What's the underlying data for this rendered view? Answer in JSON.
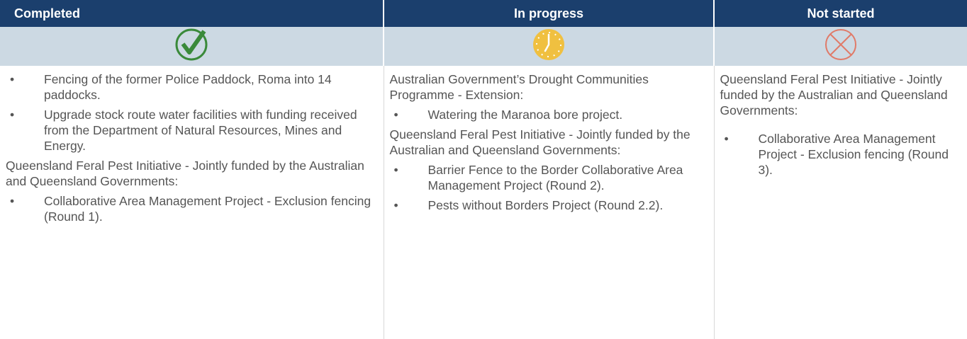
{
  "columns": [
    {
      "header": "Completed",
      "items": [
        {
          "bullet": "Fencing of the former Police Paddock, Roma into 14 paddocks."
        },
        {
          "bullet": "Upgrade stock route water facilities with funding received from the Department of Natural Resources, Mines and Energy."
        },
        {
          "text": "Queensland Feral Pest Initiative - Jointly funded by the Australian and Queensland Governments:"
        },
        {
          "bullet": "Collaborative Area Management Project - Exclusion fencing (Round 1)."
        }
      ]
    },
    {
      "header": "In progress",
      "items": [
        {
          "text": "Australian Government’s Drought Communities Programme - Extension:"
        },
        {
          "bullet": "Watering the Maranoa bore project."
        },
        {
          "text": "Queensland Feral Pest Initiative - Jointly funded by the Australian and Queensland Governments:"
        },
        {
          "bullet": "Barrier Fence to the Border Collaborative Area Management Project (Round 2)."
        },
        {
          "bullet": "Pests without Borders Project (Round 2.2)."
        }
      ]
    },
    {
      "header": "Not started",
      "items": [
        {
          "text": "Queensland Feral Pest Initiative - Jointly funded by the Australian and Queensland Governments:"
        },
        {
          "bullet": "Collaborative Area Management Project - Exclusion fencing (Round 3)."
        }
      ]
    }
  ]
}
